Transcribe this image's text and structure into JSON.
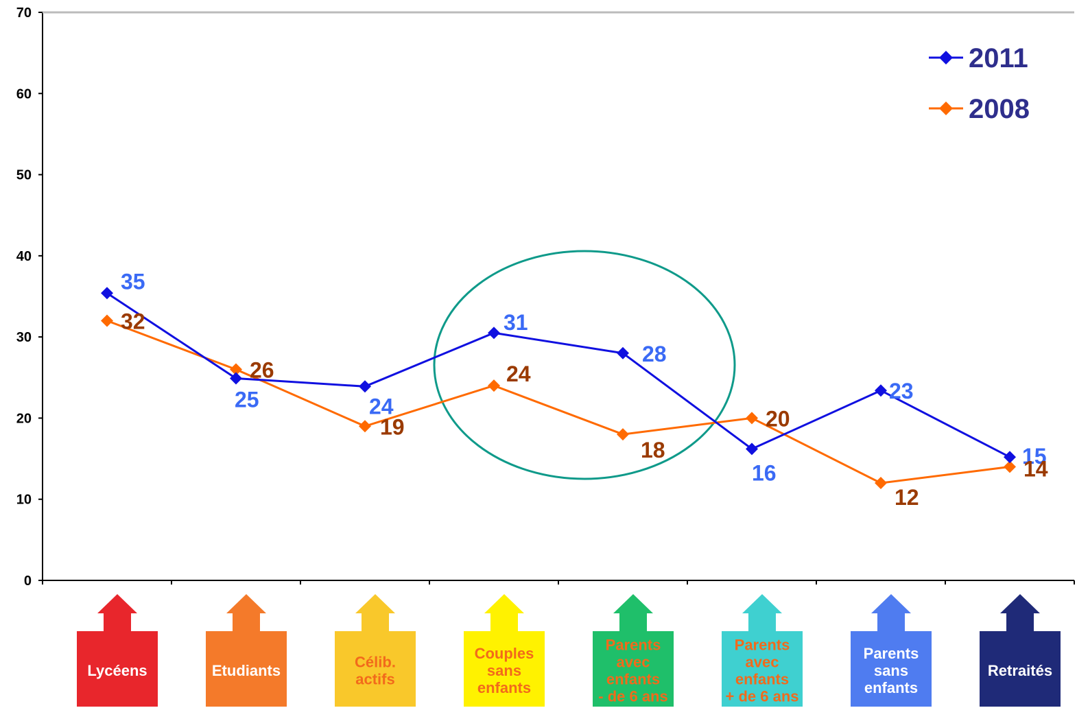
{
  "chart_data": {
    "type": "line",
    "y_ticks": [
      "0",
      "10",
      "20",
      "30",
      "40",
      "50",
      "60",
      "70"
    ],
    "ylim": [
      0,
      70
    ],
    "grid": false,
    "legend_position": "top-right",
    "categories": [
      {
        "lines": [
          "Lycéens"
        ],
        "color": "#e8262c",
        "text_color": "#ffffff"
      },
      {
        "lines": [
          "Etudiants"
        ],
        "color": "#f47a2a",
        "text_color": "#ffffff"
      },
      {
        "lines": [
          "Célib.",
          "actifs"
        ],
        "color": "#f9c82b",
        "text_color": "#f26a1b"
      },
      {
        "lines": [
          "Couples",
          "sans",
          "enfants"
        ],
        "color": "#fff200",
        "text_color": "#f26a1b"
      },
      {
        "lines": [
          "Parents",
          "avec",
          "enfants",
          "- de 6 ans"
        ],
        "color": "#1fbf6a",
        "text_color": "#f26a1b"
      },
      {
        "lines": [
          "Parents",
          "avec",
          "enfants",
          "+ de 6 ans"
        ],
        "color": "#3fd0d0",
        "text_color": "#f26a1b"
      },
      {
        "lines": [
          "Parents",
          "sans",
          "enfants"
        ],
        "color": "#4f7cf0",
        "text_color": "#ffffff"
      },
      {
        "lines": [
          "Retraités"
        ],
        "color": "#1f2a78",
        "text_color": "#ffffff"
      }
    ],
    "series": [
      {
        "name": "2011",
        "color": "#1010e0",
        "label_color": "#3a6af5",
        "values": [
          35.4,
          24.9,
          23.9,
          30.5,
          28.0,
          16.2,
          23.4,
          15.2
        ],
        "labels": [
          "35",
          "25",
          "24",
          "31",
          "28",
          "16",
          "23",
          "15"
        ]
      },
      {
        "name": "2008",
        "color": "#ff6a00",
        "label_color": "#9a3a00",
        "values": [
          32.0,
          26.0,
          19.0,
          24.0,
          18.0,
          20.0,
          12.0,
          14.0
        ],
        "labels": [
          "32",
          "26",
          "19",
          "24",
          "18",
          "20",
          "12",
          "14"
        ]
      }
    ],
    "annotations": [
      {
        "type": "ellipse",
        "color": "#0f9a8a",
        "around_categories": [
          3,
          4
        ]
      }
    ]
  }
}
